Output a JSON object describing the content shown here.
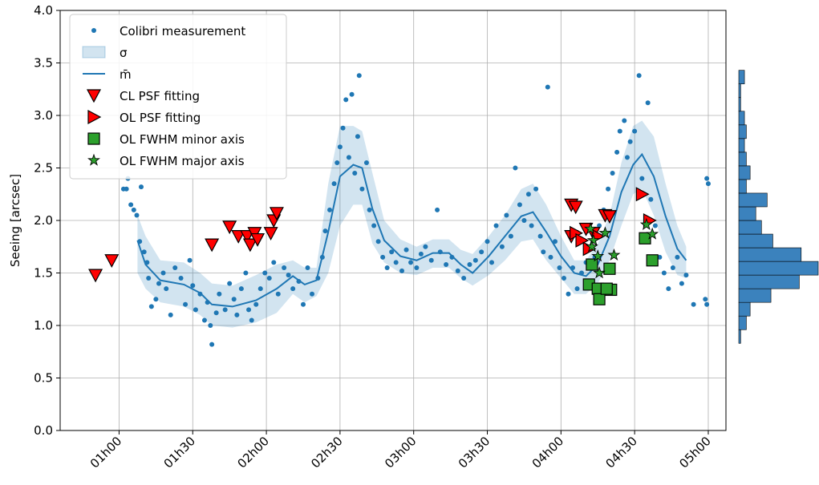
{
  "chart_data": [
    {
      "type": "line",
      "ylabel": "Seeing [arcsec]",
      "xlim": [
        0.6,
        5.12
      ],
      "ylim": [
        0,
        4
      ],
      "xticks": [
        {
          "value": 1,
          "label": "01h00"
        },
        {
          "value": 1.5,
          "label": "01h30"
        },
        {
          "value": 2,
          "label": "02h00"
        },
        {
          "value": 2.5,
          "label": "02h30"
        },
        {
          "value": 3,
          "label": "03h00"
        },
        {
          "value": 3.5,
          "label": "03h30"
        },
        {
          "value": 4,
          "label": "04h00"
        },
        {
          "value": 4.5,
          "label": "04h30"
        },
        {
          "value": 5,
          "label": "05h00"
        }
      ],
      "yticks": [
        {
          "value": 0,
          "label": "0.0"
        },
        0.5,
        {
          "value": 1,
          "label": "1.0"
        },
        1.5,
        {
          "value": 2,
          "label": "2.0"
        },
        2.5,
        {
          "value": 3,
          "label": "3.0"
        },
        3.5,
        {
          "value": 4,
          "label": "4.0"
        }
      ],
      "grid": true,
      "legend": "upper left",
      "series": [
        {
          "name": "Colibri measurement",
          "marker": "circle",
          "color": "#1f77b4",
          "x": [
            1.03,
            1.05,
            1.06,
            1.08,
            1.1,
            1.12,
            1.14,
            1.15,
            1.17,
            1.19,
            1.2,
            1.22,
            1.25,
            1.27,
            1.3,
            1.32,
            1.35,
            1.38,
            1.42,
            1.45,
            1.48,
            1.5,
            1.52,
            1.55,
            1.58,
            1.6,
            1.62,
            1.63,
            1.66,
            1.68,
            1.72,
            1.75,
            1.78,
            1.8,
            1.83,
            1.86,
            1.88,
            1.9,
            1.93,
            1.96,
            1.99,
            2.02,
            2.05,
            2.08,
            2.12,
            2.15,
            2.18,
            2.22,
            2.25,
            2.28,
            2.31,
            2.35,
            2.38,
            2.4,
            2.43,
            2.46,
            2.48,
            2.5,
            2.52,
            2.54,
            2.56,
            2.58,
            2.6,
            2.62,
            2.63,
            2.65,
            2.68,
            2.7,
            2.73,
            2.76,
            2.79,
            2.82,
            2.85,
            2.88,
            2.92,
            2.95,
            2.98,
            3.02,
            3.05,
            3.08,
            3.12,
            3.16,
            3.18,
            3.22,
            3.26,
            3.3,
            3.34,
            3.38,
            3.42,
            3.46,
            3.5,
            3.53,
            3.56,
            3.6,
            3.63,
            3.66,
            3.69,
            3.72,
            3.75,
            3.78,
            3.8,
            3.83,
            3.86,
            3.88,
            3.91,
            3.93,
            3.96,
            3.99,
            4.02,
            4.05,
            4.08,
            4.11,
            4.14,
            4.17,
            4.2,
            4.23,
            4.26,
            4.29,
            4.32,
            4.35,
            4.38,
            4.4,
            4.43,
            4.45,
            4.47,
            4.5,
            4.53,
            4.55,
            4.59,
            4.61,
            4.64,
            4.67,
            4.7,
            4.73,
            4.76,
            4.79,
            4.82,
            4.85,
            4.9,
            4.98,
            4.99,
            4.99,
            5.0
          ],
          "values": [
            2.3,
            2.3,
            2.4,
            2.15,
            2.1,
            2.05,
            1.8,
            2.32,
            1.7,
            1.6,
            1.45,
            1.18,
            1.25,
            1.4,
            1.5,
            1.35,
            1.1,
            1.55,
            1.45,
            1.2,
            1.62,
            1.38,
            1.15,
            1.3,
            1.05,
            1.22,
            1.0,
            0.82,
            1.12,
            1.3,
            1.15,
            1.4,
            1.25,
            1.1,
            1.35,
            1.5,
            1.15,
            1.05,
            1.2,
            1.35,
            1.5,
            1.45,
            1.6,
            1.3,
            1.55,
            1.48,
            1.35,
            1.42,
            1.2,
            1.55,
            1.3,
            1.45,
            1.65,
            1.9,
            2.1,
            2.35,
            2.55,
            2.7,
            2.88,
            3.15,
            2.6,
            3.2,
            2.45,
            2.8,
            3.38,
            2.3,
            2.55,
            2.1,
            1.95,
            1.8,
            1.65,
            1.55,
            1.7,
            1.6,
            1.52,
            1.72,
            1.6,
            1.55,
            1.68,
            1.75,
            1.62,
            2.1,
            1.7,
            1.58,
            1.65,
            1.52,
            1.45,
            1.58,
            1.62,
            1.7,
            1.8,
            1.6,
            1.95,
            1.75,
            2.05,
            1.85,
            2.5,
            2.15,
            2.0,
            2.25,
            1.95,
            2.3,
            1.85,
            1.7,
            3.27,
            1.65,
            1.8,
            1.55,
            1.45,
            1.3,
            1.55,
            1.35,
            1.5,
            1.6,
            1.75,
            1.65,
            1.95,
            2.1,
            2.3,
            2.45,
            2.65,
            2.85,
            2.95,
            2.6,
            2.75,
            2.85,
            3.38,
            2.4,
            3.12,
            2.2,
            1.95,
            1.65,
            1.5,
            1.35,
            1.55,
            1.65,
            1.4,
            1.48,
            1.2,
            1.25,
            1.2,
            2.4,
            2.35
          ]
        },
        {
          "name": "σ",
          "marker": "band",
          "color": "#1f77b4",
          "opacity": 0.2,
          "x": [
            1.125,
            1.18,
            1.28,
            1.44,
            1.55,
            1.63,
            1.77,
            1.93,
            2.07,
            2.18,
            2.26,
            2.34,
            2.42,
            2.5,
            2.59,
            2.65,
            2.72,
            2.8,
            2.91,
            3.02,
            3.13,
            3.24,
            3.32,
            3.4,
            3.51,
            3.62,
            3.73,
            3.81,
            3.9,
            4.0,
            4.09,
            4.17,
            4.25,
            4.33,
            4.41,
            4.49,
            4.55,
            4.63,
            4.71,
            4.79,
            4.85
          ],
          "upper": [
            2.05,
            1.85,
            1.62,
            1.6,
            1.5,
            1.4,
            1.38,
            1.48,
            1.58,
            1.62,
            1.55,
            1.55,
            2.35,
            2.9,
            2.9,
            2.85,
            2.45,
            2.0,
            1.82,
            1.75,
            1.82,
            1.82,
            1.72,
            1.68,
            1.85,
            2.05,
            2.3,
            2.35,
            2.15,
            1.85,
            1.62,
            1.62,
            1.78,
            2.05,
            2.55,
            2.9,
            2.95,
            2.8,
            2.35,
            1.95,
            1.75
          ],
          "lower": [
            1.5,
            1.35,
            1.22,
            1.18,
            1.1,
            1.0,
            0.98,
            1.03,
            1.12,
            1.3,
            1.22,
            1.28,
            1.5,
            1.95,
            2.15,
            2.15,
            1.78,
            1.6,
            1.5,
            1.48,
            1.55,
            1.55,
            1.45,
            1.38,
            1.48,
            1.62,
            1.8,
            1.82,
            1.62,
            1.45,
            1.3,
            1.3,
            1.4,
            1.62,
            1.95,
            2.25,
            2.3,
            2.05,
            1.7,
            1.48,
            1.45
          ]
        },
        {
          "name": "m̄",
          "marker": "line",
          "color": "#1f77b4",
          "x": [
            1.125,
            1.18,
            1.28,
            1.44,
            1.55,
            1.63,
            1.77,
            1.93,
            2.07,
            2.18,
            2.26,
            2.34,
            2.42,
            2.5,
            2.59,
            2.65,
            2.72,
            2.8,
            2.91,
            3.02,
            3.13,
            3.24,
            3.32,
            3.4,
            3.51,
            3.62,
            3.73,
            3.81,
            3.9,
            4.0,
            4.09,
            4.17,
            4.25,
            4.33,
            4.41,
            4.49,
            4.55,
            4.63,
            4.71,
            4.79,
            4.85
          ],
          "values": [
            1.81,
            1.58,
            1.43,
            1.39,
            1.31,
            1.2,
            1.18,
            1.24,
            1.35,
            1.47,
            1.39,
            1.43,
            1.89,
            2.42,
            2.53,
            2.5,
            2.11,
            1.81,
            1.66,
            1.62,
            1.69,
            1.69,
            1.58,
            1.5,
            1.66,
            1.85,
            2.04,
            2.08,
            1.89,
            1.66,
            1.5,
            1.47,
            1.58,
            1.85,
            2.27,
            2.53,
            2.63,
            2.42,
            2.04,
            1.73,
            1.62
          ]
        },
        {
          "name": "CL PSF fitting",
          "marker": "triangle-down",
          "color": "#ff0000",
          "x": [
            0.84,
            0.95,
            1.63,
            1.75,
            1.81,
            1.87,
            1.89,
            1.92,
            1.94,
            2.03,
            2.05,
            2.07,
            4.07,
            4.1,
            4.17,
            4.22,
            4.3,
            4.33,
            4.07
          ],
          "values": [
            1.48,
            1.62,
            1.77,
            1.94,
            1.85,
            1.85,
            1.77,
            1.88,
            1.82,
            1.88,
            2.0,
            2.07,
            2.15,
            2.13,
            1.92,
            1.88,
            2.05,
            2.04,
            1.85
          ]
        },
        {
          "name": "OL PSF fitting",
          "marker": "triangle-right",
          "color": "#ff0000",
          "x": [
            4.1,
            4.14,
            4.19,
            4.25,
            4.55,
            4.6
          ],
          "values": [
            1.88,
            1.81,
            1.73,
            1.85,
            2.25,
            2.0
          ]
        },
        {
          "name": "OL FWHM minor axis",
          "marker": "square",
          "color": "#2ca02c",
          "x": [
            4.19,
            4.25,
            4.26,
            4.21,
            4.33,
            4.34,
            4.57,
            4.62,
            4.31
          ],
          "values": [
            1.39,
            1.35,
            1.25,
            1.58,
            1.54,
            1.34,
            1.83,
            1.62,
            1.35
          ]
        },
        {
          "name": "OL FWHM major axis",
          "marker": "star",
          "color": "#2ca02c",
          "x": [
            4.2,
            4.22,
            4.25,
            4.26,
            4.3,
            4.36,
            4.58,
            4.62,
            4.21
          ],
          "values": [
            1.92,
            1.81,
            1.66,
            1.5,
            1.88,
            1.67,
            1.96,
            1.87,
            1.75
          ]
        }
      ]
    },
    {
      "type": "histogram",
      "orientation": "horizontal",
      "color": "#3b82bd",
      "bins": [
        0.83,
        0.96,
        1.09,
        1.22,
        1.35,
        1.48,
        1.61,
        1.74,
        1.87,
        2.0,
        2.13,
        2.26,
        2.39,
        2.52,
        2.65,
        2.78,
        2.91,
        3.04,
        3.17,
        3.3,
        3.43
      ],
      "counts": [
        1,
        4,
        6,
        17,
        32,
        42,
        33,
        18,
        12,
        9,
        15,
        4,
        6,
        4,
        3,
        4,
        3,
        1,
        1,
        3
      ],
      "xlim": [
        0,
        42
      ],
      "ylim": [
        0,
        4
      ]
    }
  ]
}
